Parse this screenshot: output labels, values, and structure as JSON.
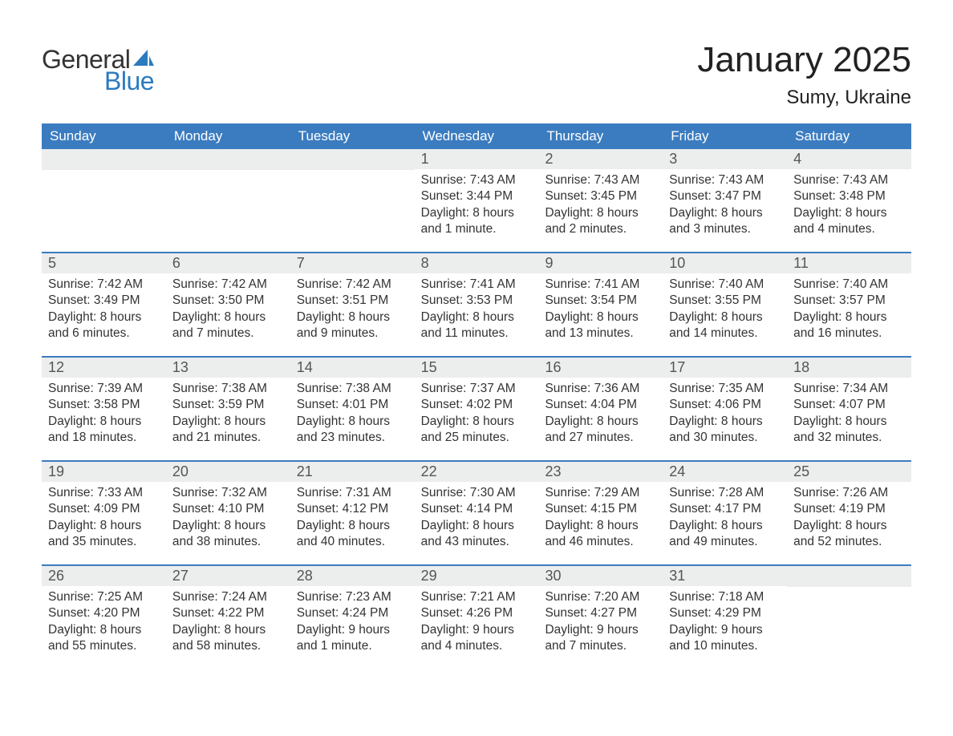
{
  "logo": {
    "text1": "General",
    "text2": "Blue",
    "sail_color": "#2b7bbf",
    "text1_color": "#333333"
  },
  "title": "January 2025",
  "location": "Sumy, Ukraine",
  "colors": {
    "header_bg": "#3b7cc0",
    "header_text": "#ffffff",
    "daynum_bg": "#eceded",
    "week_border": "#3b7cc0",
    "body_text": "#333333",
    "page_bg": "#ffffff"
  },
  "weekdays": [
    "Sunday",
    "Monday",
    "Tuesday",
    "Wednesday",
    "Thursday",
    "Friday",
    "Saturday"
  ],
  "weeks": [
    [
      null,
      null,
      null,
      {
        "n": "1",
        "sunrise": "7:43 AM",
        "sunset": "3:44 PM",
        "daylight": "8 hours and 1 minute."
      },
      {
        "n": "2",
        "sunrise": "7:43 AM",
        "sunset": "3:45 PM",
        "daylight": "8 hours and 2 minutes."
      },
      {
        "n": "3",
        "sunrise": "7:43 AM",
        "sunset": "3:47 PM",
        "daylight": "8 hours and 3 minutes."
      },
      {
        "n": "4",
        "sunrise": "7:43 AM",
        "sunset": "3:48 PM",
        "daylight": "8 hours and 4 minutes."
      }
    ],
    [
      {
        "n": "5",
        "sunrise": "7:42 AM",
        "sunset": "3:49 PM",
        "daylight": "8 hours and 6 minutes."
      },
      {
        "n": "6",
        "sunrise": "7:42 AM",
        "sunset": "3:50 PM",
        "daylight": "8 hours and 7 minutes."
      },
      {
        "n": "7",
        "sunrise": "7:42 AM",
        "sunset": "3:51 PM",
        "daylight": "8 hours and 9 minutes."
      },
      {
        "n": "8",
        "sunrise": "7:41 AM",
        "sunset": "3:53 PM",
        "daylight": "8 hours and 11 minutes."
      },
      {
        "n": "9",
        "sunrise": "7:41 AM",
        "sunset": "3:54 PM",
        "daylight": "8 hours and 13 minutes."
      },
      {
        "n": "10",
        "sunrise": "7:40 AM",
        "sunset": "3:55 PM",
        "daylight": "8 hours and 14 minutes."
      },
      {
        "n": "11",
        "sunrise": "7:40 AM",
        "sunset": "3:57 PM",
        "daylight": "8 hours and 16 minutes."
      }
    ],
    [
      {
        "n": "12",
        "sunrise": "7:39 AM",
        "sunset": "3:58 PM",
        "daylight": "8 hours and 18 minutes."
      },
      {
        "n": "13",
        "sunrise": "7:38 AM",
        "sunset": "3:59 PM",
        "daylight": "8 hours and 21 minutes."
      },
      {
        "n": "14",
        "sunrise": "7:38 AM",
        "sunset": "4:01 PM",
        "daylight": "8 hours and 23 minutes."
      },
      {
        "n": "15",
        "sunrise": "7:37 AM",
        "sunset": "4:02 PM",
        "daylight": "8 hours and 25 minutes."
      },
      {
        "n": "16",
        "sunrise": "7:36 AM",
        "sunset": "4:04 PM",
        "daylight": "8 hours and 27 minutes."
      },
      {
        "n": "17",
        "sunrise": "7:35 AM",
        "sunset": "4:06 PM",
        "daylight": "8 hours and 30 minutes."
      },
      {
        "n": "18",
        "sunrise": "7:34 AM",
        "sunset": "4:07 PM",
        "daylight": "8 hours and 32 minutes."
      }
    ],
    [
      {
        "n": "19",
        "sunrise": "7:33 AM",
        "sunset": "4:09 PM",
        "daylight": "8 hours and 35 minutes."
      },
      {
        "n": "20",
        "sunrise": "7:32 AM",
        "sunset": "4:10 PM",
        "daylight": "8 hours and 38 minutes."
      },
      {
        "n": "21",
        "sunrise": "7:31 AM",
        "sunset": "4:12 PM",
        "daylight": "8 hours and 40 minutes."
      },
      {
        "n": "22",
        "sunrise": "7:30 AM",
        "sunset": "4:14 PM",
        "daylight": "8 hours and 43 minutes."
      },
      {
        "n": "23",
        "sunrise": "7:29 AM",
        "sunset": "4:15 PM",
        "daylight": "8 hours and 46 minutes."
      },
      {
        "n": "24",
        "sunrise": "7:28 AM",
        "sunset": "4:17 PM",
        "daylight": "8 hours and 49 minutes."
      },
      {
        "n": "25",
        "sunrise": "7:26 AM",
        "sunset": "4:19 PM",
        "daylight": "8 hours and 52 minutes."
      }
    ],
    [
      {
        "n": "26",
        "sunrise": "7:25 AM",
        "sunset": "4:20 PM",
        "daylight": "8 hours and 55 minutes."
      },
      {
        "n": "27",
        "sunrise": "7:24 AM",
        "sunset": "4:22 PM",
        "daylight": "8 hours and 58 minutes."
      },
      {
        "n": "28",
        "sunrise": "7:23 AM",
        "sunset": "4:24 PM",
        "daylight": "9 hours and 1 minute."
      },
      {
        "n": "29",
        "sunrise": "7:21 AM",
        "sunset": "4:26 PM",
        "daylight": "9 hours and 4 minutes."
      },
      {
        "n": "30",
        "sunrise": "7:20 AM",
        "sunset": "4:27 PM",
        "daylight": "9 hours and 7 minutes."
      },
      {
        "n": "31",
        "sunrise": "7:18 AM",
        "sunset": "4:29 PM",
        "daylight": "9 hours and 10 minutes."
      },
      null
    ]
  ],
  "labels": {
    "sunrise": "Sunrise: ",
    "sunset": "Sunset: ",
    "daylight": "Daylight: "
  }
}
